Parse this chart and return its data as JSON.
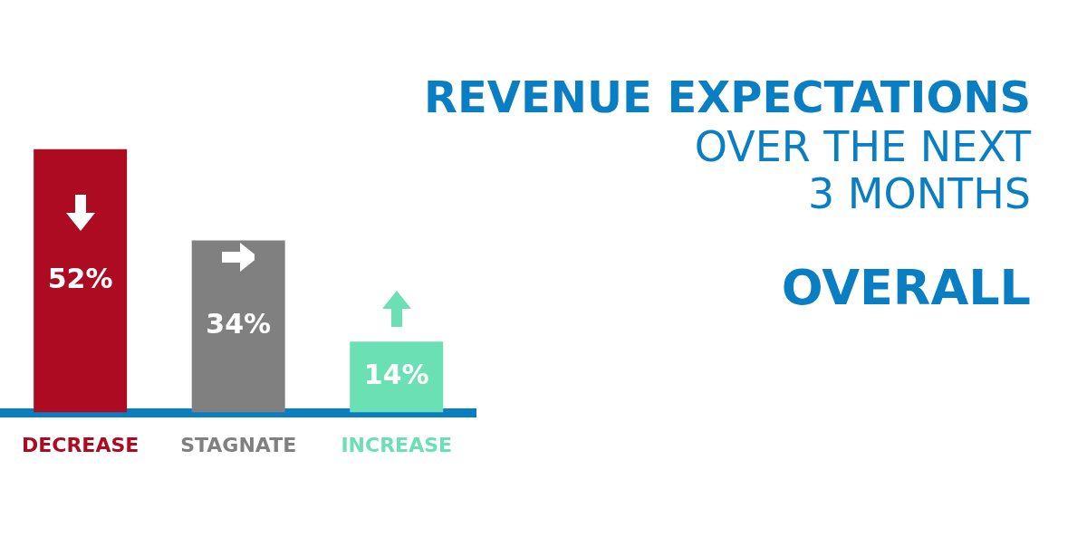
{
  "chart_data": {
    "type": "bar",
    "title": "REVENUE EXPECTATIONS",
    "subtitle": "OVER THE NEXT 3 MONTHS",
    "annotations": [
      "OVERALL"
    ],
    "categories": [
      "DECREASE",
      "STAGNATE",
      "INCREASE"
    ],
    "values": [
      52,
      34,
      14
    ],
    "colors": [
      "#ad0b22",
      "#808080",
      "#6ae0b4"
    ],
    "value_labels": [
      "52%",
      "34%",
      "14%"
    ]
  }
}
